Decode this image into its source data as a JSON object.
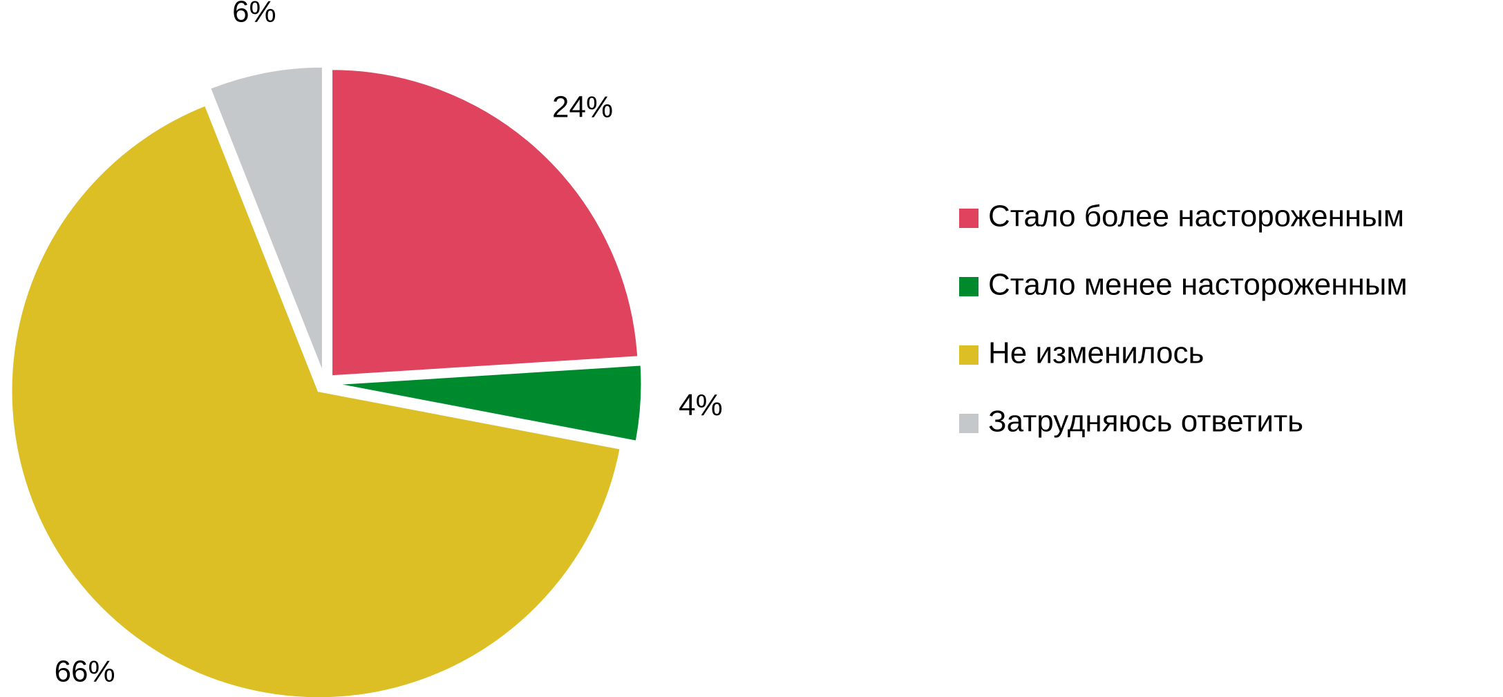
{
  "chart_data": {
    "type": "pie",
    "categories": [
      "Стало более настороженным",
      "Стало менее настороженным",
      "Не изменилось",
      "Затрудняюсь ответить"
    ],
    "values": [
      24,
      4,
      66,
      6
    ],
    "value_labels": [
      "24%",
      "4%",
      "66%",
      "6%"
    ],
    "colors": [
      "#e0435e",
      "#008a2e",
      "#dcbe25",
      "#c5c8cb"
    ],
    "legend": "right"
  }
}
